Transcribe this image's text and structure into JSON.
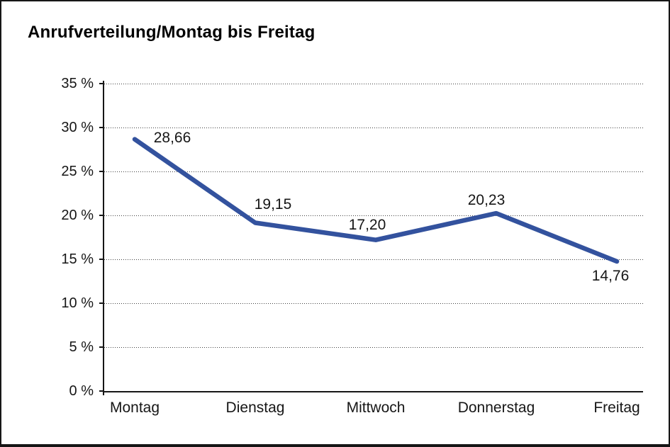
{
  "window": {
    "background": "#ffffff",
    "frame_border_color": "#161616"
  },
  "chart_data": {
    "type": "line",
    "title": "Anrufverteilung/Montag bis Freitag",
    "categories": [
      "Montag",
      "Dienstag",
      "Mittwoch",
      "Donnerstag",
      "Freitag"
    ],
    "values": [
      28.66,
      19.15,
      17.2,
      20.23,
      14.76
    ],
    "point_labels": [
      "28,66",
      "19,15",
      "17,20",
      "20,23",
      "14,76"
    ],
    "xlabel": "",
    "ylabel": "",
    "ylim": [
      0,
      35
    ],
    "y_tick_step": 5,
    "y_tick_labels": [
      "35 %",
      "30 %",
      "25 %",
      "20 %",
      "15 %",
      "10 %",
      "5 %",
      "0 %"
    ],
    "grid": "horizontal-dotted",
    "legend": "none",
    "line_color": "#33529E",
    "axis_color": "#161616",
    "text_color": "#161616"
  }
}
